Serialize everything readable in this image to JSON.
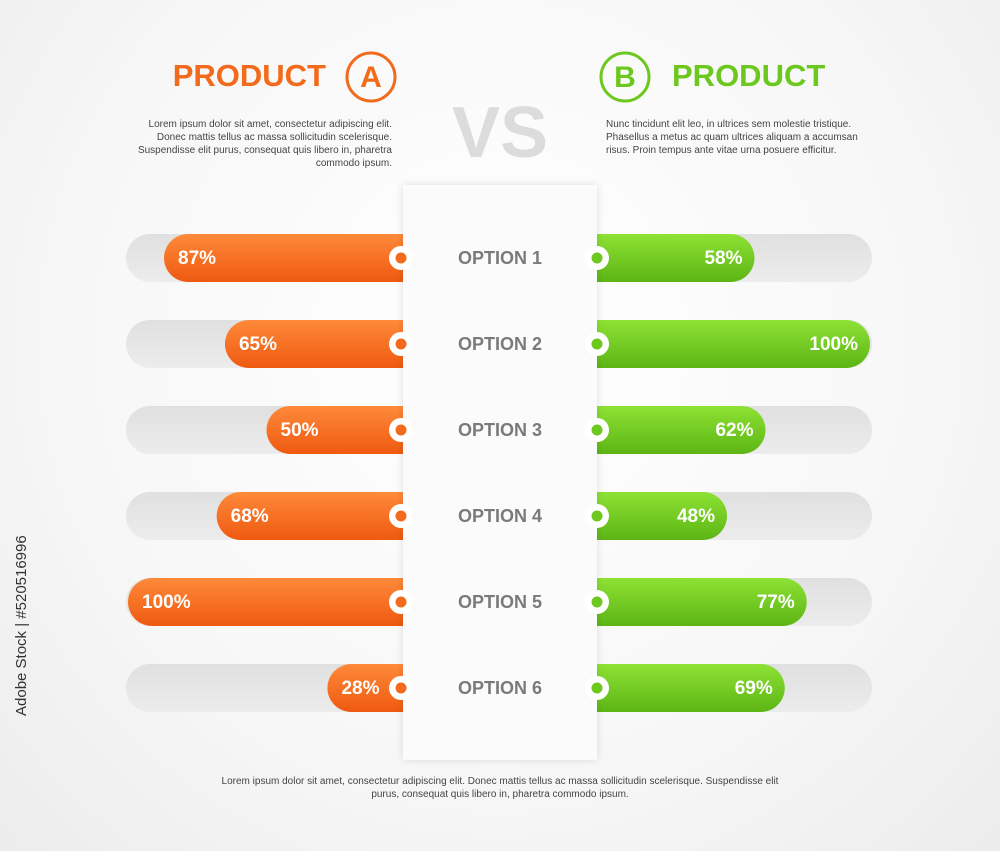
{
  "chart_data": {
    "type": "bar",
    "vs": "VS",
    "categories": [
      "OPTION 1",
      "OPTION 2",
      "OPTION 3",
      "OPTION 4",
      "OPTION 5",
      "OPTION 6"
    ],
    "xlim": [
      0,
      100
    ],
    "series": [
      {
        "name": "PRODUCT",
        "badge": "A",
        "color": "#f26a1b",
        "description": "Lorem ipsum dolor sit amet, consectetur adipiscing elit. Donec mattis tellus ac massa sollicitudin scelerisque. Suspendisse elit purus, consequat quis libero in, pharetra commodo ipsum.",
        "values": [
          87,
          65,
          50,
          68,
          100,
          28
        ],
        "value_labels": [
          "87%",
          "65%",
          "50%",
          "68%",
          "100%",
          "28%"
        ]
      },
      {
        "name": "PRODUCT",
        "badge": "B",
        "color": "#6cc81e",
        "description": "Nunc tincidunt elit leo, in ultrices sem molestie tristique. Phasellus a metus ac quam ultrices aliquam a accumsan risus. Proin tempus ante vitae urna posuere efficitur.",
        "values": [
          58,
          100,
          62,
          48,
          77,
          69
        ],
        "value_labels": [
          "58%",
          "100%",
          "62%",
          "48%",
          "77%",
          "69%"
        ]
      }
    ],
    "footnote": "Lorem ipsum dolor sit amet, consectetur adipiscing elit. Donec mattis tellus ac massa sollicitudin scelerisque. Suspendisse elit purus, consequat quis libero in, pharetra commodo ipsum.",
    "watermark": "Adobe Stock | #520516996"
  }
}
